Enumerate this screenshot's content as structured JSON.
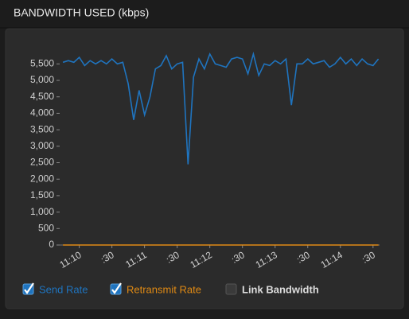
{
  "chart_data": {
    "type": "line",
    "title": "BANDWIDTH USED (kbps)",
    "x": [
      -15,
      -10,
      -5,
      0,
      5,
      10,
      15,
      20,
      25,
      30,
      35,
      40,
      45,
      50,
      55,
      60,
      65,
      70,
      75,
      80,
      85,
      90,
      95,
      100,
      105,
      110,
      115,
      120,
      125,
      130,
      135,
      140,
      145,
      150,
      155,
      160,
      165,
      170,
      175,
      180,
      185,
      190,
      195,
      200,
      205,
      210,
      215,
      220,
      225,
      230,
      235,
      240,
      245,
      250,
      255,
      260,
      265,
      270,
      275
    ],
    "xlim": [
      -18,
      276
    ],
    "xticks": [
      {
        "value": 0,
        "label": "11:10"
      },
      {
        "value": 30,
        "label": ":30"
      },
      {
        "value": 60,
        "label": "11:11"
      },
      {
        "value": 90,
        "label": ":30"
      },
      {
        "value": 120,
        "label": "11:12"
      },
      {
        "value": 150,
        "label": ":30"
      },
      {
        "value": 180,
        "label": "11:13"
      },
      {
        "value": 210,
        "label": ":30"
      },
      {
        "value": 240,
        "label": "11:14"
      },
      {
        "value": 270,
        "label": ":30"
      }
    ],
    "ylim": [
      0,
      5750
    ],
    "yticks": [
      0,
      500,
      {
        "value": 1000,
        "label": "1,000"
      },
      {
        "value": 1500,
        "label": "1,500"
      },
      {
        "value": 2000,
        "label": "2,000"
      },
      {
        "value": 2500,
        "label": "2,500"
      },
      {
        "value": 3000,
        "label": "3,000"
      },
      {
        "value": 3500,
        "label": "3,500"
      },
      {
        "value": 4000,
        "label": "4,000"
      },
      {
        "value": 4500,
        "label": "4,500"
      },
      {
        "value": 5000,
        "label": "5,000"
      },
      {
        "value": 5500,
        "label": "5,500"
      }
    ],
    "grid": false,
    "series": [
      {
        "name": "Send Rate",
        "color": "#1f74bf",
        "visible": true,
        "values": [
          5550,
          5600,
          5550,
          5700,
          5450,
          5600,
          5500,
          5600,
          5500,
          5650,
          5500,
          5550,
          4900,
          3800,
          4700,
          3950,
          4500,
          5350,
          5450,
          5750,
          5350,
          5500,
          5550,
          2450,
          5100,
          5650,
          5350,
          5800,
          5500,
          5450,
          5400,
          5650,
          5700,
          5650,
          5200,
          5800,
          5150,
          5500,
          5450,
          5600,
          5500,
          5650,
          4250,
          5500,
          5500,
          5650,
          5500,
          5550,
          5600,
          5400,
          5500,
          5700,
          5500,
          5650,
          5450,
          5650,
          5500,
          5450,
          5650
        ]
      },
      {
        "name": "Retransmit Rate",
        "color": "#e08a14",
        "visible": true,
        "values": [
          0,
          0,
          0,
          0,
          0,
          0,
          0,
          0,
          0,
          0,
          0,
          0,
          0,
          0,
          0,
          0,
          0,
          0,
          0,
          0,
          0,
          0,
          0,
          0,
          0,
          0,
          0,
          0,
          0,
          0,
          0,
          0,
          0,
          0,
          0,
          0,
          0,
          0,
          0,
          0,
          0,
          0,
          0,
          0,
          0,
          0,
          0,
          0,
          0,
          0,
          0,
          0,
          0,
          0,
          0,
          0,
          0,
          0,
          0
        ]
      },
      {
        "name": "Link Bandwidth",
        "color": "#dddddd",
        "visible": false
      }
    ]
  }
}
